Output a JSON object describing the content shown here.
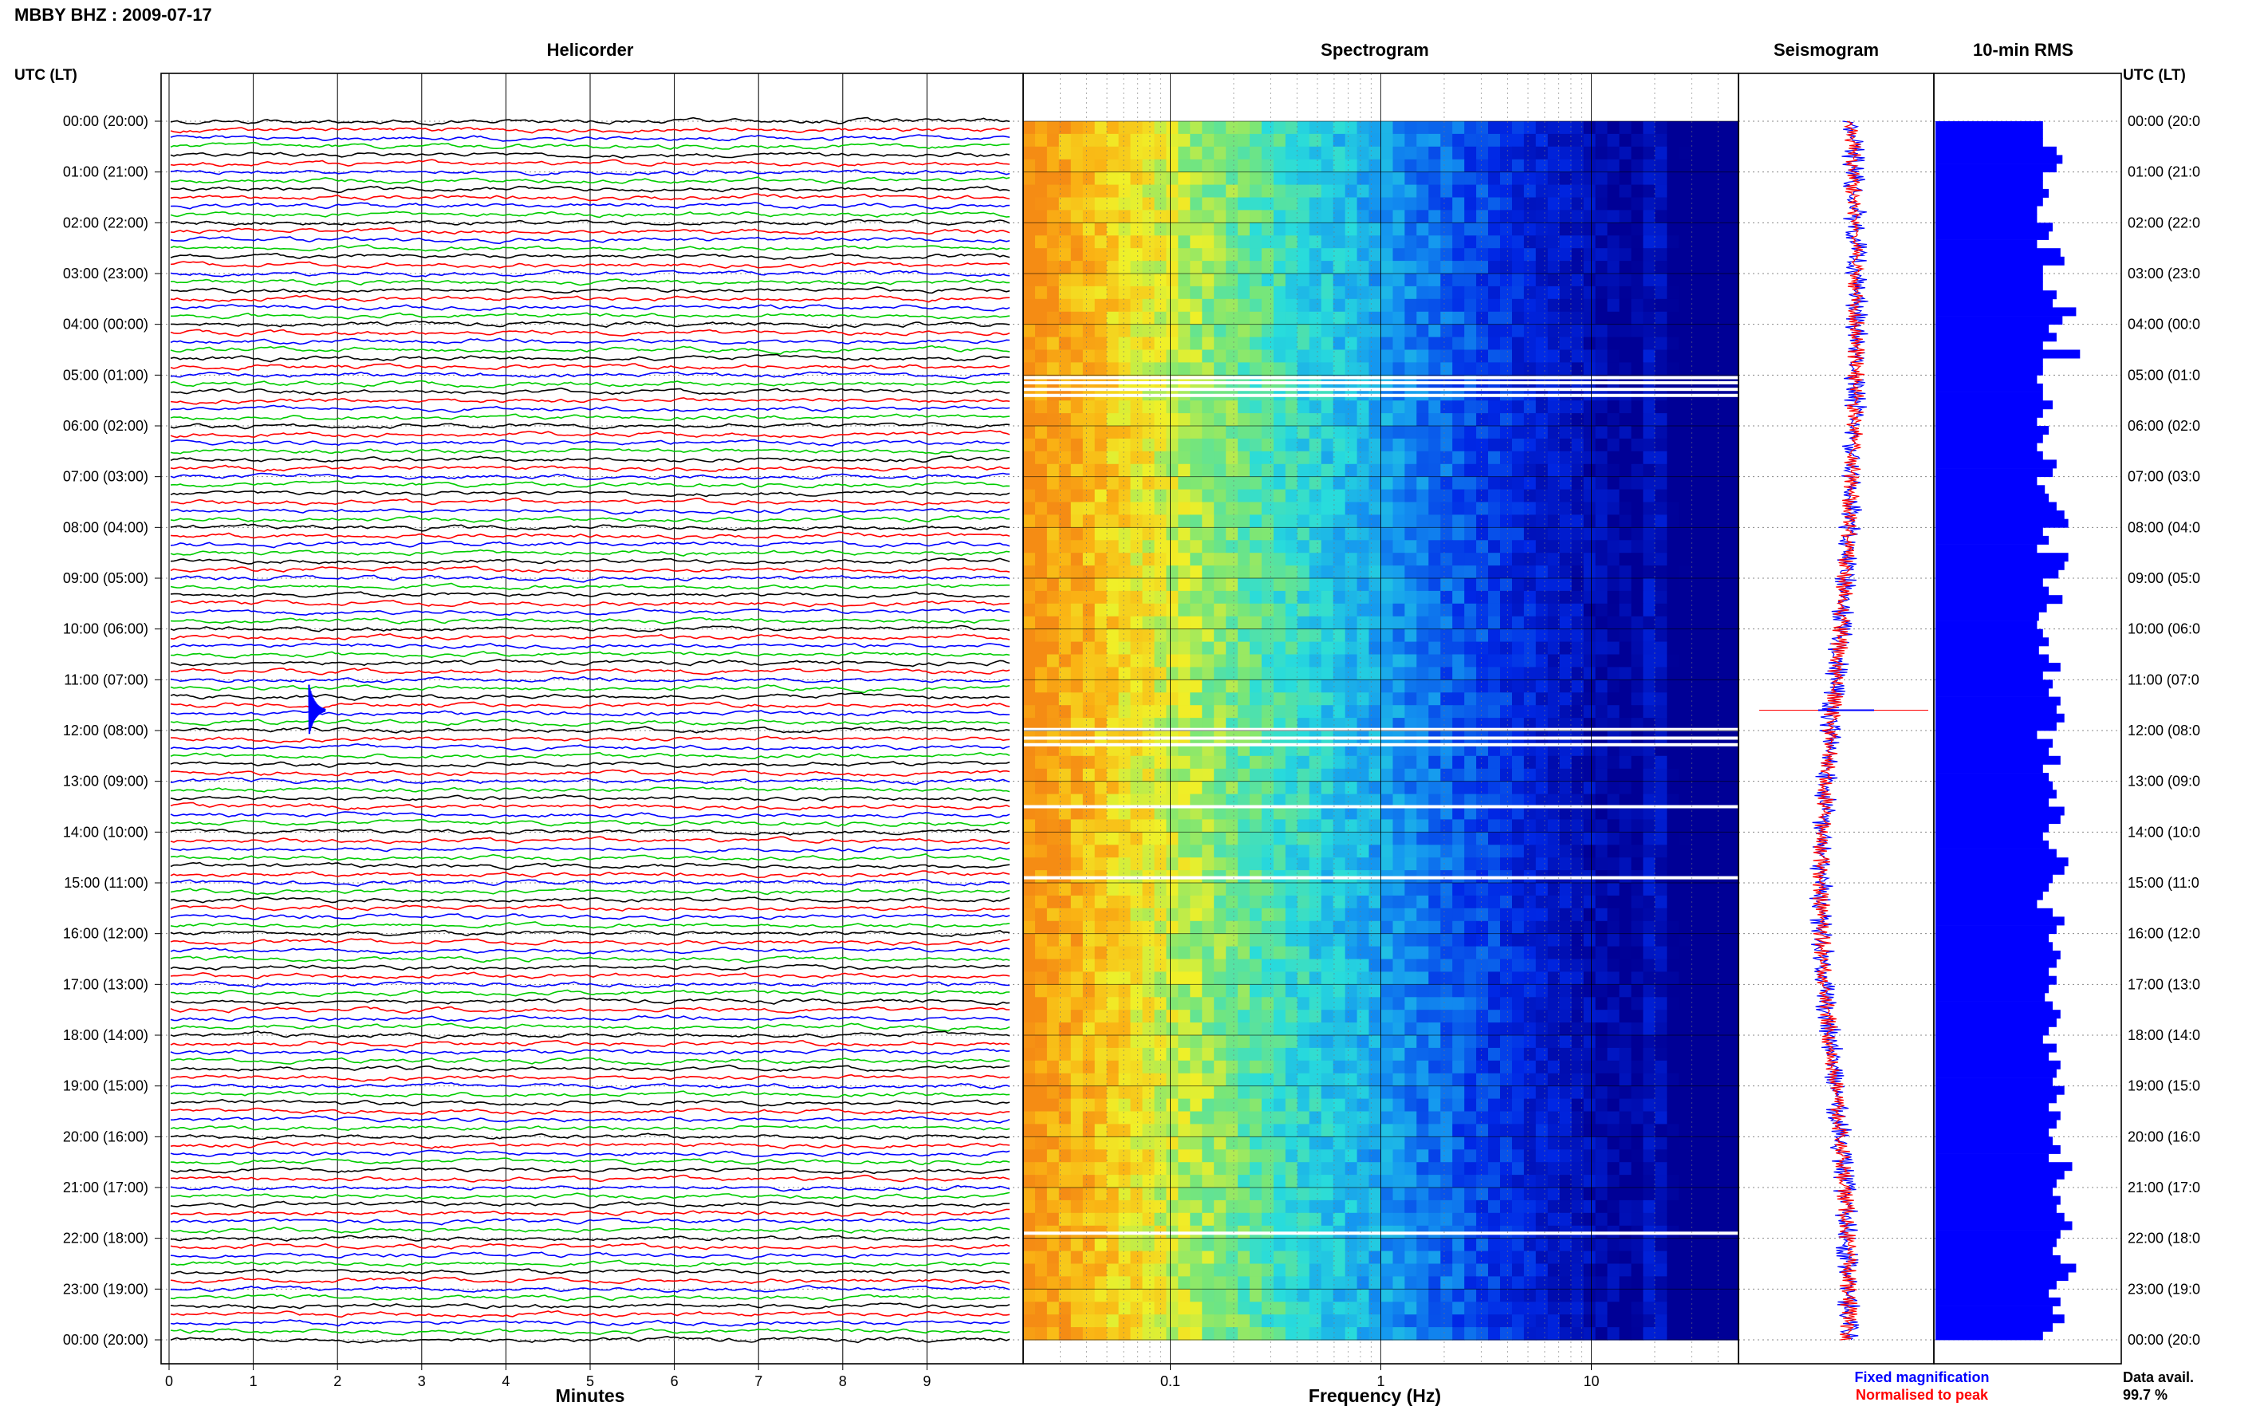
{
  "header": {
    "station_title": "MBBY BHZ : 2009-07-17",
    "utc_left_label": "UTC (LT)",
    "utc_right_label": "UTC (LT)"
  },
  "panels": {
    "helicorder_title": "Helicorder",
    "spectrogram_title": "Spectrogram",
    "seismogram_title": "Seismogram",
    "rms_title": "10-min RMS"
  },
  "hour_labels": [
    "00:00 (20:00)",
    "01:00 (21:00)",
    "02:00 (22:00)",
    "03:00 (23:00)",
    "04:00 (00:00)",
    "05:00 (01:00)",
    "06:00 (02:00)",
    "07:00 (03:00)",
    "08:00 (04:00)",
    "09:00 (05:00)",
    "10:00 (06:00)",
    "11:00 (07:00)",
    "12:00 (08:00)",
    "13:00 (09:00)",
    "14:00 (10:00)",
    "15:00 (11:00)",
    "16:00 (12:00)",
    "17:00 (13:00)",
    "18:00 (14:00)",
    "19:00 (15:00)",
    "20:00 (16:00)",
    "21:00 (17:00)",
    "22:00 (18:00)",
    "23:00 (19:00)",
    "00:00 (20:00)"
  ],
  "hour_labels_right": [
    "00:00 (20:0",
    "01:00 (21:0",
    "02:00 (22:0",
    "03:00 (23:0",
    "04:00 (00:0",
    "05:00 (01:0",
    "06:00 (02:0",
    "07:00 (03:0",
    "08:00 (04:0",
    "09:00 (05:0",
    "10:00 (06:0",
    "11:00 (07:0",
    "12:00 (08:0",
    "13:00 (09:0",
    "14:00 (10:0",
    "15:00 (11:0",
    "16:00 (12:0",
    "17:00 (13:0",
    "18:00 (14:0",
    "19:00 (15:0",
    "20:00 (16:0",
    "21:00 (17:0",
    "22:00 (18:0",
    "23:00 (19:0",
    "00:00 (20:0"
  ],
  "helicorder": {
    "x_ticks": [
      "0",
      "1",
      "2",
      "3",
      "4",
      "5",
      "6",
      "7",
      "8",
      "9"
    ],
    "xlabel": "Minutes",
    "trace_colors": [
      "#000000",
      "#ff0000",
      "#0000ff",
      "#00cc00"
    ]
  },
  "spectrogram": {
    "x_ticks": [
      "0.1",
      "1",
      "10"
    ],
    "xlabel": "Frequency (Hz)",
    "xscale": "log",
    "white_gaps_hours": [
      5.05,
      5.15,
      5.28,
      5.4,
      11.98,
      12.15,
      12.28,
      13.5,
      14.9,
      21.9
    ]
  },
  "legend": {
    "fixed_label": "Fixed magnification",
    "fixed_color": "#0000ff",
    "normalised_label": "Normalised to peak",
    "normalised_color": "#ff0000"
  },
  "footer": {
    "avail_label": "Data avail.",
    "avail_value": "99.7 %"
  },
  "chart_data": [
    {
      "type": "line",
      "title": "Helicorder",
      "xlabel": "Minutes",
      "xlim": [
        0,
        10
      ],
      "x_ticks": [
        0,
        1,
        2,
        3,
        4,
        5,
        6,
        7,
        8,
        9
      ],
      "ylim": [
        0,
        24
      ],
      "y_ticks_label": "UTC (LT)",
      "traces_per_hour": 6,
      "trace_minutes": 10,
      "events": [
        {
          "hour": 11.6,
          "minute": 1.7,
          "amplitude": "large"
        }
      ]
    },
    {
      "type": "heatmap",
      "title": "Spectrogram",
      "xlabel": "Frequency (Hz)",
      "xscale": "log",
      "xlim": [
        0.02,
        50
      ],
      "x_ticks": [
        0.1,
        1,
        10
      ],
      "ylim": [
        0,
        24
      ]
    },
    {
      "type": "bar",
      "title": "10-min RMS",
      "orientation": "horizontal",
      "bins_per_hour": 6,
      "values": [
        0.55,
        0.55,
        0.55,
        0.62,
        0.65,
        0.62,
        0.55,
        0.55,
        0.58,
        0.55,
        0.52,
        0.52,
        0.6,
        0.58,
        0.52,
        0.64,
        0.66,
        0.55,
        0.55,
        0.55,
        0.62,
        0.6,
        0.72,
        0.65,
        0.58,
        0.62,
        0.55,
        0.74,
        0.55,
        0.55,
        0.52,
        0.55,
        0.55,
        0.6,
        0.55,
        0.52,
        0.58,
        0.55,
        0.52,
        0.55,
        0.62,
        0.6,
        0.52,
        0.56,
        0.58,
        0.62,
        0.66,
        0.68,
        0.55,
        0.58,
        0.52,
        0.68,
        0.66,
        0.63,
        0.55,
        0.58,
        0.65,
        0.57,
        0.53,
        0.52,
        0.55,
        0.58,
        0.53,
        0.58,
        0.64,
        0.55,
        0.6,
        0.58,
        0.64,
        0.62,
        0.66,
        0.62,
        0.52,
        0.6,
        0.58,
        0.64,
        0.55,
        0.58,
        0.6,
        0.62,
        0.58,
        0.66,
        0.64,
        0.58,
        0.55,
        0.58,
        0.62,
        0.68,
        0.66,
        0.6,
        0.58,
        0.55,
        0.52,
        0.6,
        0.66,
        0.62,
        0.58,
        0.6,
        0.64,
        0.62,
        0.58,
        0.62,
        0.58,
        0.56,
        0.6,
        0.64,
        0.62,
        0.58,
        0.55,
        0.62,
        0.58,
        0.64,
        0.62,
        0.6,
        0.66,
        0.62,
        0.58,
        0.64,
        0.62,
        0.58,
        0.6,
        0.64,
        0.58,
        0.7,
        0.66,
        0.62,
        0.6,
        0.64,
        0.62,
        0.66,
        0.7,
        0.64,
        0.62,
        0.6,
        0.64,
        0.72,
        0.68,
        0.62,
        0.58,
        0.64,
        0.6,
        0.66,
        0.6,
        0.55
      ]
    }
  ]
}
